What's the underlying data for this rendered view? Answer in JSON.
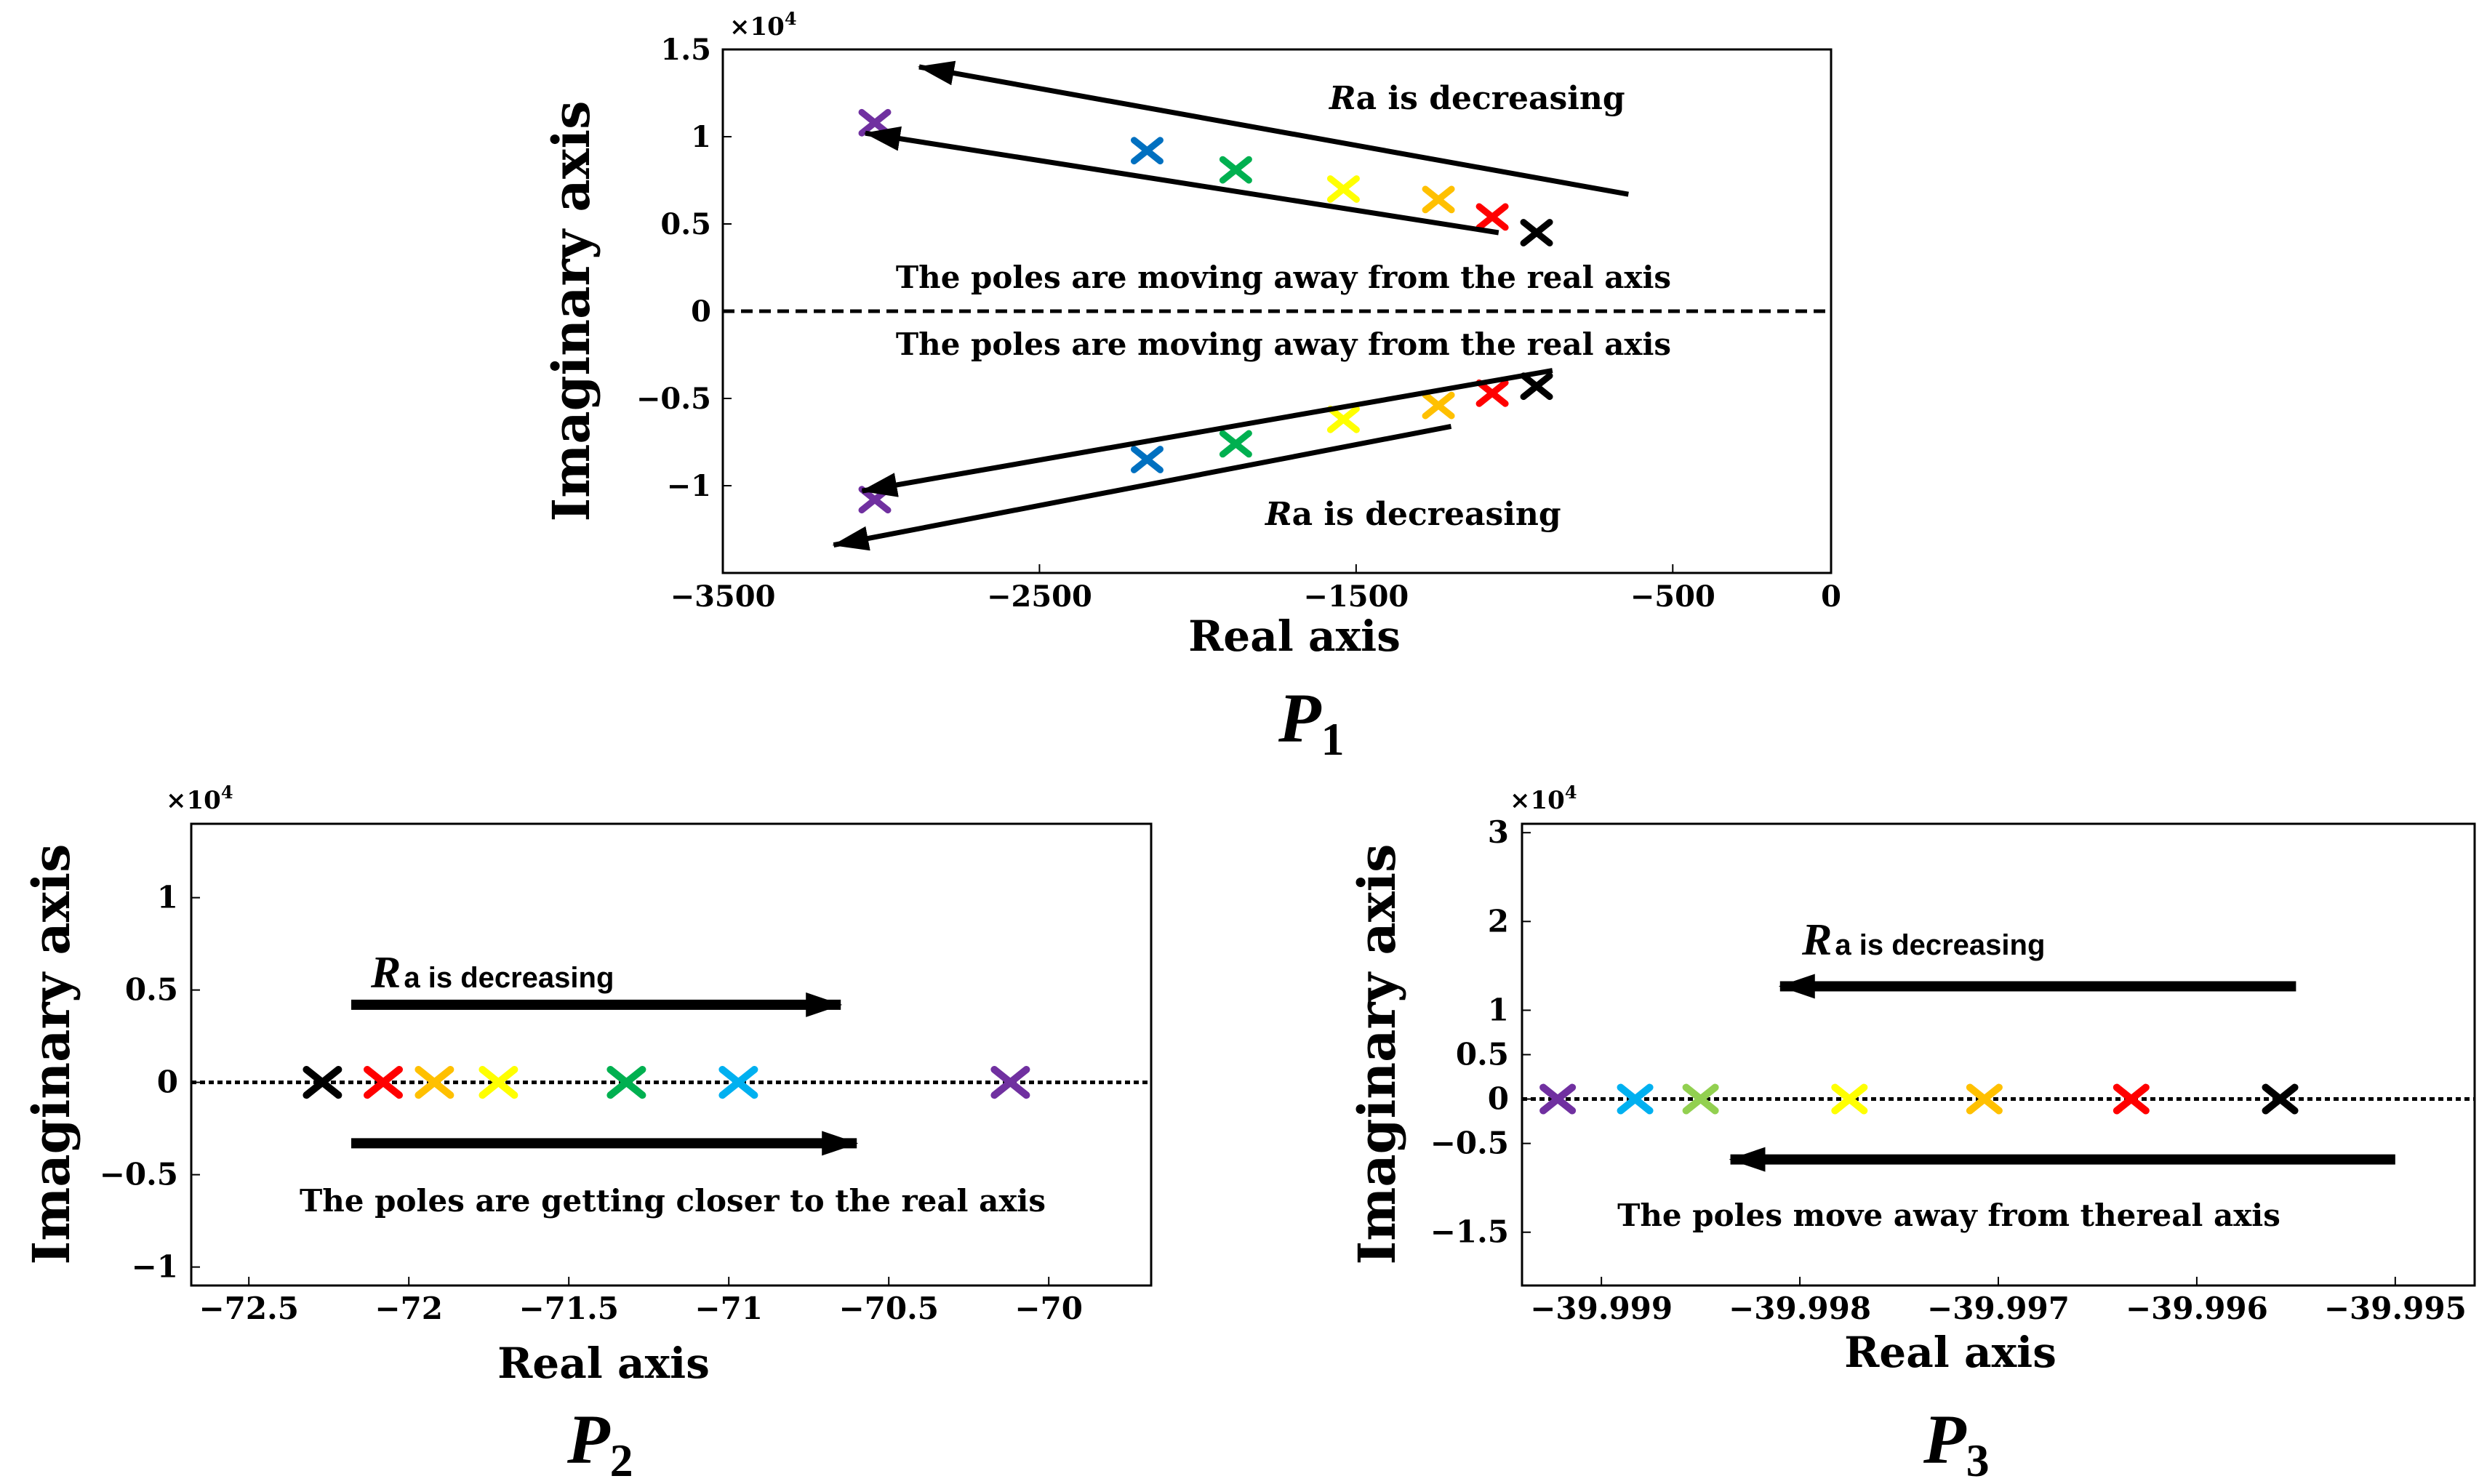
{
  "chart_data": [
    {
      "id": "p1",
      "type": "scatter",
      "title": "P",
      "title_sub": "1",
      "xlabel": "Real axis",
      "ylabel": "Imaginary axis",
      "exponent_label": "×10",
      "exponent_power": "4",
      "xlim": [
        -3500,
        0
      ],
      "ylim": [
        -15000,
        15000
      ],
      "xticks": [
        -3500,
        -2500,
        -1500,
        -500,
        0
      ],
      "xtick_labels": [
        "−3500",
        "−2500",
        "−1500",
        "−500",
        "0"
      ],
      "yticks": [
        15000,
        10000,
        5000,
        0,
        -5000,
        -10000
      ],
      "ytick_labels": [
        "1.5",
        "1",
        "0.5",
        "0",
        "−0.5",
        "−1"
      ],
      "reference_line_y": 0,
      "series": [
        {
          "name": "purple",
          "color": "#7030a0",
          "points": [
            [
              -3020,
              10800
            ],
            [
              -3020,
              -10800
            ]
          ]
        },
        {
          "name": "blue",
          "color": "#0070c0",
          "points": [
            [
              -2160,
              9200
            ],
            [
              -2160,
              -8500
            ]
          ]
        },
        {
          "name": "green",
          "color": "#00b050",
          "points": [
            [
              -1880,
              8100
            ],
            [
              -1880,
              -7600
            ]
          ]
        },
        {
          "name": "yellow",
          "color": "#ffff00",
          "points": [
            [
              -1540,
              7000
            ],
            [
              -1540,
              -6200
            ]
          ]
        },
        {
          "name": "orange",
          "color": "#ffc000",
          "points": [
            [
              -1240,
              6400
            ],
            [
              -1240,
              -5400
            ]
          ]
        },
        {
          "name": "red",
          "color": "#ff0000",
          "points": [
            [
              -1070,
              5400
            ],
            [
              -1070,
              -4700
            ]
          ]
        },
        {
          "name": "black",
          "color": "#000000",
          "points": [
            [
              -930,
              4500
            ],
            [
              -930,
              -4300
            ]
          ]
        }
      ],
      "arrows": [
        {
          "from": [
            -640,
            6700
          ],
          "to": [
            -2880,
            14000
          ]
        },
        {
          "from": [
            -1050,
            4500
          ],
          "to": [
            -3050,
            10200
          ]
        },
        {
          "from": [
            -880,
            -3400
          ],
          "to": [
            -3060,
            -10300
          ]
        },
        {
          "from": [
            -1200,
            -6600
          ],
          "to": [
            -3150,
            -13400
          ]
        }
      ],
      "annotations": [
        {
          "text": "The poles are moving away from the real axis"
        },
        {
          "text": "The poles are moving away from the real axis"
        }
      ],
      "label_top": {
        "symbol": "R",
        "text": "a is decreasing"
      },
      "label_bottom": {
        "symbol": "R",
        "text": "a is decreasing"
      }
    },
    {
      "id": "p2",
      "type": "scatter",
      "title": "P",
      "title_sub": "2",
      "xlabel": "Real axis",
      "ylabel": "Imaginary axis",
      "exponent_label": "×10",
      "exponent_power": "4",
      "xlim": [
        -72.68,
        -69.68
      ],
      "ylim": [
        -11000,
        14000
      ],
      "xticks": [
        -72.5,
        -72,
        -71.5,
        -71,
        -70.5,
        -70
      ],
      "xtick_labels": [
        "−72.5",
        "−72",
        "−71.5",
        "−71",
        "−70.5",
        "−70"
      ],
      "yticks": [
        10000,
        5000,
        0,
        -5000,
        -10000
      ],
      "ytick_labels": [
        "1",
        "0.5",
        "0",
        "−0.5",
        "−1"
      ],
      "reference_line_y": 0,
      "series": [
        {
          "name": "black",
          "color": "#000000",
          "points": [
            [
              -72.27,
              0
            ]
          ]
        },
        {
          "name": "red",
          "color": "#ff0000",
          "points": [
            [
              -72.08,
              0
            ]
          ]
        },
        {
          "name": "orange",
          "color": "#ffc000",
          "points": [
            [
              -71.92,
              0
            ]
          ]
        },
        {
          "name": "yellow",
          "color": "#ffff00",
          "points": [
            [
              -71.72,
              0
            ]
          ]
        },
        {
          "name": "green",
          "color": "#00b050",
          "points": [
            [
              -71.32,
              0
            ]
          ]
        },
        {
          "name": "cyan",
          "color": "#00b0f0",
          "points": [
            [
              -70.97,
              0
            ]
          ]
        },
        {
          "name": "purple",
          "color": "#7030a0",
          "points": [
            [
              -70.12,
              0
            ]
          ]
        }
      ],
      "arrows": [
        {
          "from": [
            -72.18,
            4200
          ],
          "to": [
            -70.65,
            4200
          ]
        },
        {
          "from": [
            -72.18,
            -3300
          ],
          "to": [
            -70.6,
            -3300
          ]
        }
      ],
      "annotations": [
        {
          "text": "The poles are getting closer to the real axis"
        }
      ],
      "label_top": {
        "symbol": "R",
        "text": "a is decreasing"
      }
    },
    {
      "id": "p3",
      "type": "scatter",
      "title": "P",
      "title_sub": "3",
      "xlabel": "Real axis",
      "ylabel": "Imaginary axis",
      "exponent_label": "×10",
      "exponent_power": "4",
      "xlim": [
        -39.9994,
        -39.9946
      ],
      "ylim": [
        -21000,
        31000
      ],
      "xticks": [
        -39.999,
        -39.998,
        -39.997,
        -39.996,
        -39.995
      ],
      "xtick_labels": [
        "−39.999",
        "−39.998",
        "−39.997",
        "−39.996",
        "−39.995"
      ],
      "yticks": [
        30000,
        20000,
        10000,
        5000,
        0,
        -5000,
        -15000
      ],
      "ytick_labels": [
        "3",
        "2",
        "1",
        "0.5",
        "0",
        "−0.5",
        "−1.5"
      ],
      "reference_line_y": 0,
      "series": [
        {
          "name": "purple",
          "color": "#7030a0",
          "points": [
            [
              -39.99922,
              0
            ]
          ]
        },
        {
          "name": "cyan",
          "color": "#00b0f0",
          "points": [
            [
              -39.99883,
              0
            ]
          ]
        },
        {
          "name": "light-green",
          "color": "#92d050",
          "points": [
            [
              -39.9985,
              0
            ]
          ]
        },
        {
          "name": "yellow",
          "color": "#ffff00",
          "points": [
            [
              -39.99775,
              0
            ]
          ]
        },
        {
          "name": "orange",
          "color": "#ffc000",
          "points": [
            [
              -39.99707,
              0
            ]
          ]
        },
        {
          "name": "red",
          "color": "#ff0000",
          "points": [
            [
              -39.99633,
              0
            ]
          ]
        },
        {
          "name": "black",
          "color": "#000000",
          "points": [
            [
              -39.99558,
              0
            ]
          ]
        }
      ],
      "arrows": [
        {
          "from": [
            -39.9955,
            12700
          ],
          "to": [
            -39.9981,
            12700
          ]
        },
        {
          "from": [
            -39.995,
            -6800
          ],
          "to": [
            -39.99835,
            -6800
          ]
        }
      ],
      "annotations": [
        {
          "text": "The poles move away from thereal axis"
        }
      ],
      "label_top": {
        "symbol": "R",
        "text": "a is decreasing"
      }
    }
  ]
}
